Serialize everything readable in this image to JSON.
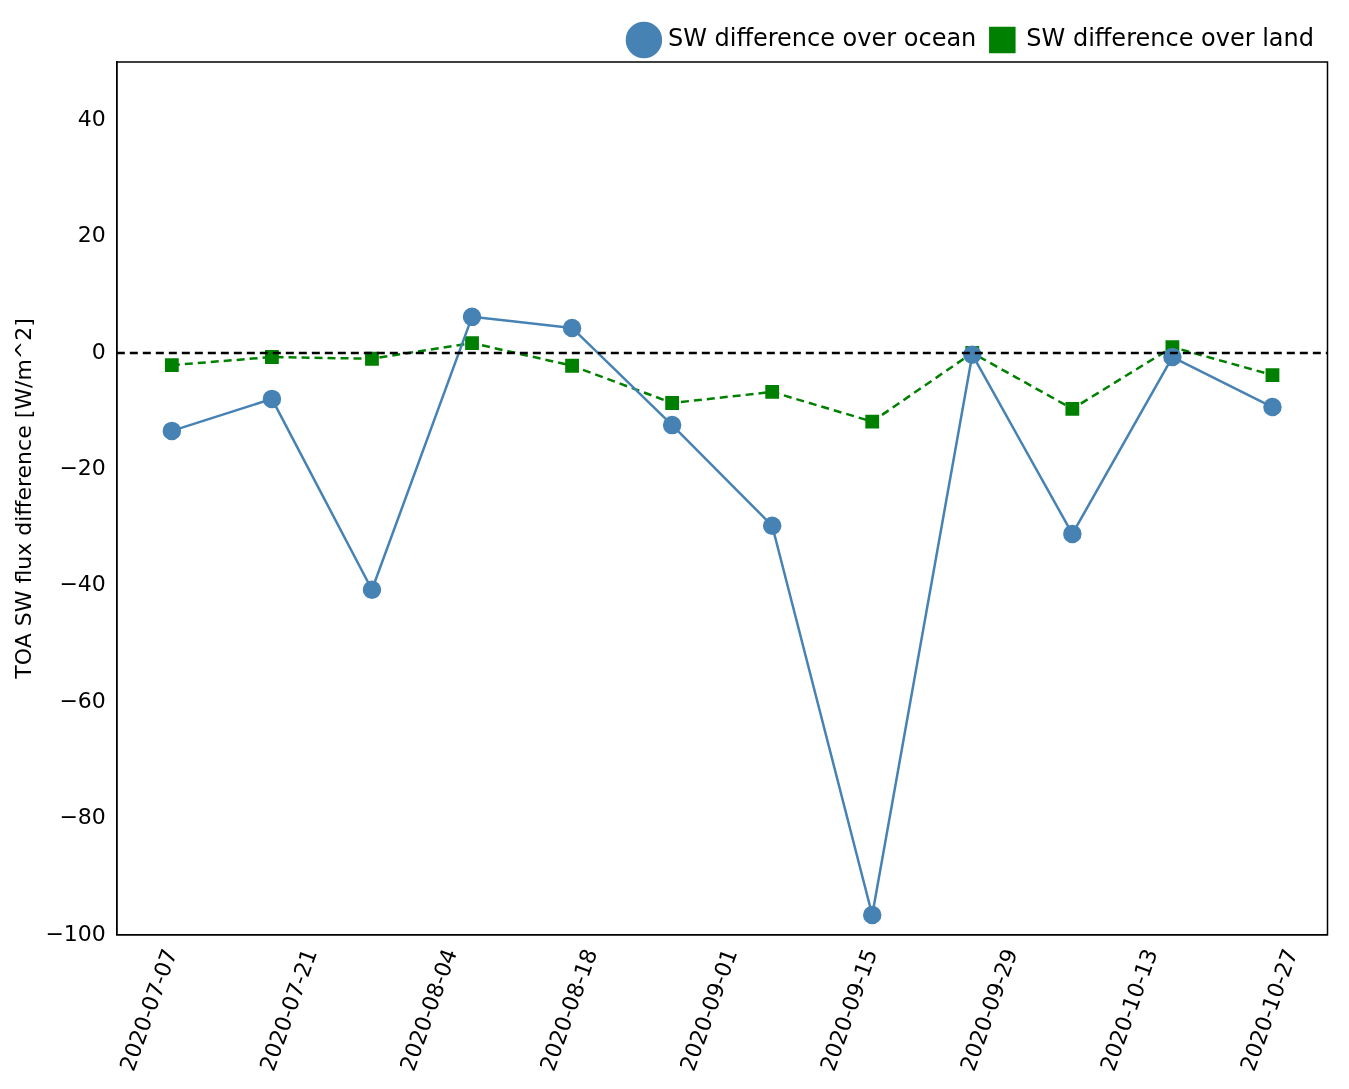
{
  "chart_data": {
    "type": "line",
    "ylabel": "TOA SW flux difference [W/m^2]",
    "x": [
      "2020-07-07",
      "2020-07-17",
      "2020-07-27",
      "2020-08-06",
      "2020-08-16",
      "2020-08-26",
      "2020-09-05",
      "2020-09-15",
      "2020-09-25",
      "2020-10-05",
      "2020-10-15",
      "2020-10-25"
    ],
    "series": [
      {
        "name": "SW difference over land",
        "color": "#008000",
        "marker": "square",
        "line_style": "dashed",
        "values": [
          -2.1,
          -0.7,
          -1.0,
          1.7,
          -2.2,
          -8.6,
          -6.7,
          -11.8,
          0.0,
          -9.6,
          1.0,
          -3.8
        ]
      },
      {
        "name": "SW difference over ocean",
        "color": "#4682b4",
        "marker": "circle",
        "line_style": "solid",
        "values": [
          -13.4,
          -7.9,
          -40.7,
          6.2,
          4.3,
          -12.4,
          -29.7,
          -96.6,
          -0.3,
          -31.1,
          -0.7,
          -9.3
        ]
      }
    ],
    "xlim": [
      "2020-07-01T12:00",
      "2020-10-30T12:00"
    ],
    "xticks": [
      "2020-07-07",
      "2020-07-21",
      "2020-08-04",
      "2020-08-18",
      "2020-09-01",
      "2020-09-15",
      "2020-09-29",
      "2020-10-13",
      "2020-10-27"
    ],
    "ylim": [
      -100,
      50
    ],
    "yticks": [
      -100,
      -80,
      -60,
      -40,
      -20,
      0,
      20,
      40
    ],
    "ref_lines": [
      {
        "axis": "y",
        "value": 0,
        "color": "#000000",
        "line_style": "dashed"
      }
    ],
    "grid": false,
    "legend": "top right"
  }
}
